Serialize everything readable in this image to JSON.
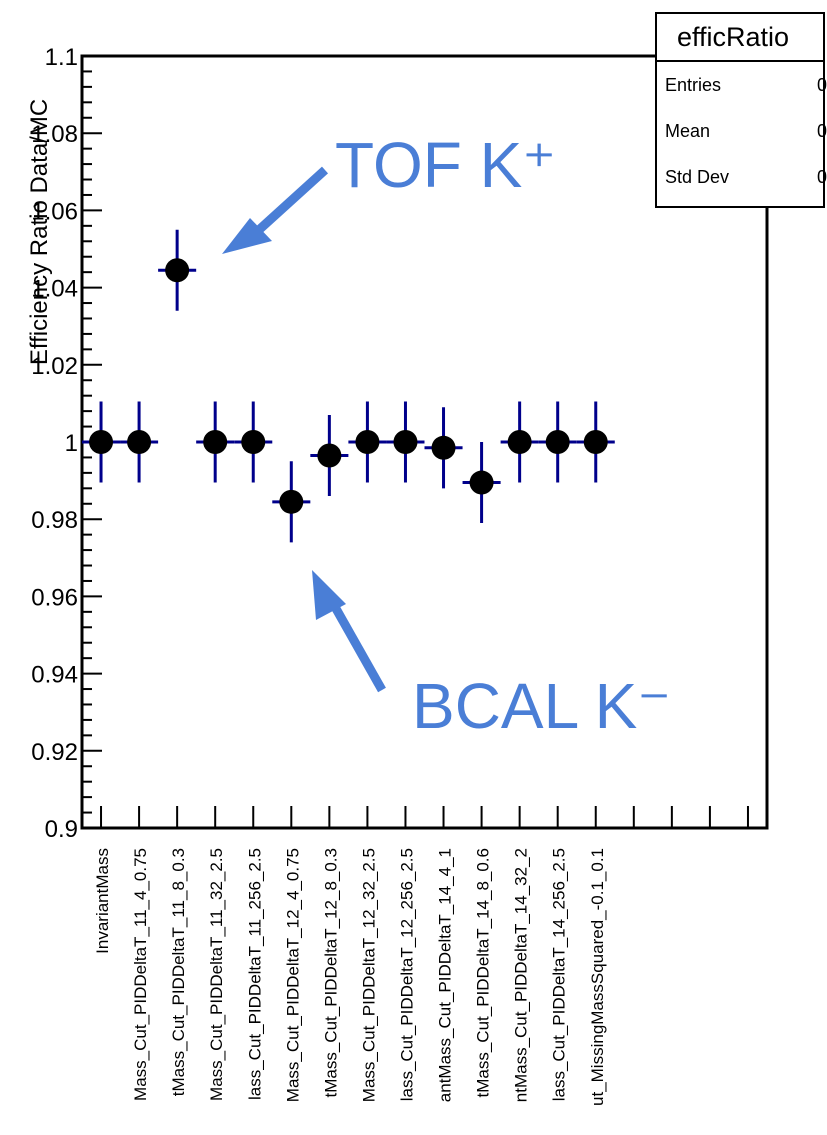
{
  "stats": {
    "title": "efficRatio",
    "rows": [
      {
        "label": "Entries",
        "value": "0"
      },
      {
        "label": "Mean",
        "value": "0"
      },
      {
        "label": "Std Dev",
        "value": "0"
      }
    ]
  },
  "annotations": {
    "tof": "TOF K⁺",
    "bcal": "BCAL K⁻",
    "arrow_color": "#4a7ed6"
  },
  "colors": {
    "marker": "#000000",
    "error_bar": "#00008b",
    "axis": "#000000"
  },
  "chart_data": {
    "type": "scatter",
    "title": "",
    "xlabel": "",
    "ylabel": "Efficiency Ratio Data/MC",
    "ylim": [
      0.9,
      1.1
    ],
    "yticks": [
      "0.9",
      "0.92",
      "0.94",
      "0.96",
      "0.98",
      "1",
      "1.02",
      "1.04",
      "1.06",
      "1.08",
      "1.1"
    ],
    "n_bins": 18,
    "categories": [
      "InvariantMass",
      "Mass_Cut_PIDDeltaT_11_4_0.75",
      "tMass_Cut_PIDDeltaT_11_8_0.3",
      "Mass_Cut_PIDDeltaT_11_32_2.5",
      "lass_Cut_PIDDeltaT_11_256_2.5",
      "Mass_Cut_PIDDeltaT_12_4_0.75",
      "tMass_Cut_PIDDeltaT_12_8_0.3",
      "Mass_Cut_PIDDeltaT_12_32_2.5",
      "lass_Cut_PIDDeltaT_12_256_2.5",
      "antMass_Cut_PIDDeltaT_14_4_1",
      "tMass_Cut_PIDDeltaT_14_8_0.6",
      "ntMass_Cut_PIDDeltaT_14_32_2",
      "lass_Cut_PIDDeltaT_14_256_2.5",
      "ut_MissingMassSquared_-0.1_0.1"
    ],
    "values": [
      1.0,
      1.0,
      1.0445,
      1.0,
      1.0,
      0.9845,
      0.9965,
      1.0,
      1.0,
      0.9985,
      0.9895,
      1.0,
      1.0,
      1.0
    ],
    "errors": [
      0.0105,
      0.0105,
      0.0105,
      0.0105,
      0.0105,
      0.0105,
      0.0105,
      0.0105,
      0.0105,
      0.0105,
      0.0105,
      0.0105,
      0.0105,
      0.0105
    ],
    "grid": false,
    "legend": "none"
  }
}
